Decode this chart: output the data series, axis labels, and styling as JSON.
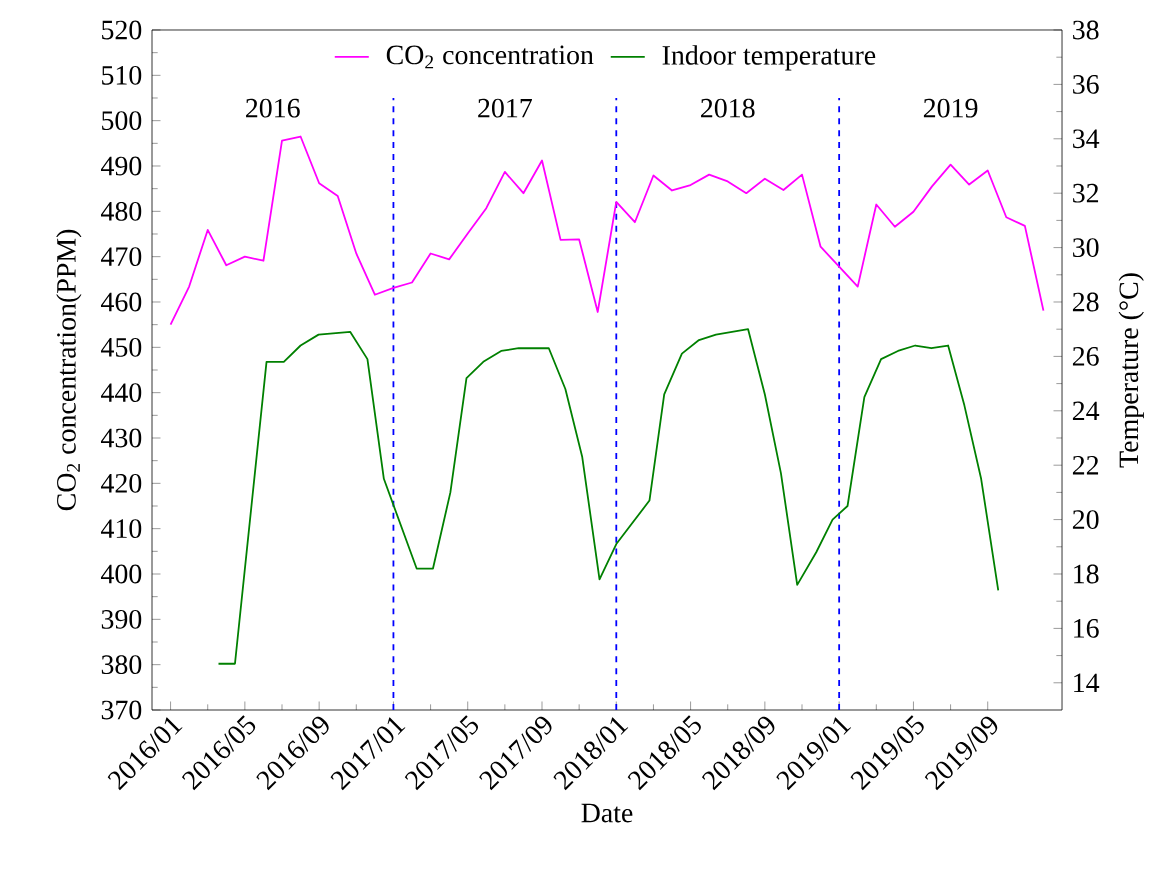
{
  "chart_data": {
    "type": "line",
    "xlabel": "Date",
    "ylabel": "CO$_{2}$ concentration(PPM)",
    "y2label": "Temperature (°C)",
    "xlim": [
      "2015-12",
      "2020-01"
    ],
    "ylim": [
      370,
      520
    ],
    "y2lim": [
      13,
      38
    ],
    "xticks": [
      {
        "value": "2016-01",
        "label": "2016/01"
      },
      {
        "value": "2016-05",
        "label": "2016/05"
      },
      {
        "value": "2016-09",
        "label": "2016/09"
      },
      {
        "value": "2017-01",
        "label": "2017/01"
      },
      {
        "value": "2017-05",
        "label": "2017/05"
      },
      {
        "value": "2017-09",
        "label": "2017/09"
      },
      {
        "value": "2018-01",
        "label": "2018/01"
      },
      {
        "value": "2018-05",
        "label": "2018/05"
      },
      {
        "value": "2018-09",
        "label": "2018/09"
      },
      {
        "value": "2019-01",
        "label": "2019/01"
      },
      {
        "value": "2019-05",
        "label": "2019/05"
      },
      {
        "value": "2019-09",
        "label": "2019/09"
      }
    ],
    "yticks": [
      370,
      380,
      390,
      400,
      410,
      420,
      430,
      440,
      450,
      460,
      470,
      480,
      490,
      500,
      510,
      520
    ],
    "y2ticks": [
      14,
      16,
      18,
      20,
      22,
      24,
      26,
      28,
      30,
      32,
      34,
      36,
      38
    ],
    "legend": "top",
    "marker": "none",
    "line_style": "solid",
    "series": [
      {
        "name": "CO$_{2}$ concentration",
        "color": "#ff00ff",
        "x": [
          "2016-01",
          "2016-02",
          "2016-03",
          "2016-04",
          "2016-05",
          "2016-06",
          "2016-07",
          "2016-08",
          "2016-09",
          "2016-10",
          "2016-11",
          "2016-12",
          "2017-01",
          "2017-02",
          "2017-03",
          "2017-04",
          "2017-05",
          "2017-06",
          "2017-07",
          "2017-08",
          "2017-09",
          "2017-10",
          "2017-11",
          "2017-12",
          "2018-01",
          "2018-02",
          "2018-03",
          "2018-04",
          "2018-05",
          "2018-06",
          "2018-07",
          "2018-08",
          "2018-09",
          "2018-10",
          "2018-11",
          "2018-12",
          "2019-01",
          "2019-02",
          "2019-03",
          "2019-04",
          "2019-05",
          "2019-06",
          "2019-07",
          "2019-08",
          "2019-09",
          "2019-10",
          "2019-11",
          "2019-12"
        ],
        "values": [
          455,
          463.4,
          475.9,
          468.1,
          470,
          469.1,
          495.6,
          496.5,
          486.2,
          483.4,
          470.7,
          461.6,
          463.1,
          464.3,
          470.7,
          469.4,
          475.1,
          480.7,
          488.7,
          484,
          491.2,
          473.7,
          473.8,
          457.8,
          482.1,
          477.6,
          487.9,
          484.6,
          485.8,
          488.1,
          486.6,
          484,
          487.2,
          484.7,
          488.1,
          472.2,
          467.8,
          463.4,
          481.5,
          476.6,
          479.9,
          485.5,
          490.3,
          485.9,
          489,
          478.7,
          476.8,
          458.1
        ]
      },
      {
        "name": "Indoor temperature",
        "color": "#008000",
        "axis": "y2",
        "x": [
          "2016-03-19",
          "2016-04-15",
          "2016-06-06",
          "2016-07-04",
          "2016-08-01",
          "2016-08-31",
          "2016-10-22",
          "2016-11-19",
          "2016-12-16",
          "2017-02-08",
          "2017-03-05",
          "2017-04-03",
          "2017-04-29",
          "2017-05-27",
          "2017-06-25",
          "2017-07-24",
          "2017-09-12",
          "2017-10-09",
          "2017-11-06",
          "2017-12-04",
          "2018-01-01",
          "2018-02-23",
          "2018-03-19",
          "2018-04-17",
          "2018-05-15",
          "2018-06-12",
          "2018-08-04",
          "2018-09-01",
          "2018-09-27",
          "2018-10-24",
          "2018-11-24",
          "2018-12-21",
          "2019-01-15",
          "2019-02-11",
          "2019-03-09",
          "2019-04-06",
          "2019-05-04",
          "2019-05-31",
          "2019-06-27",
          "2019-07-24",
          "2019-08-21",
          "2019-09-18"
        ],
        "values": [
          14.7,
          14.7,
          25.8,
          25.8,
          26.4,
          26.8,
          26.9,
          25.9,
          21.5,
          18.2,
          18.2,
          21,
          25.2,
          25.8,
          26.2,
          26.3,
          26.3,
          24.8,
          22.3,
          17.8,
          19.1,
          20.7,
          24.6,
          26.1,
          26.6,
          26.8,
          27,
          24.6,
          21.7,
          17.6,
          18.8,
          20,
          20.5,
          24.5,
          25.9,
          26.2,
          26.4,
          26.3,
          26.4,
          24.2,
          21.5,
          17.4
        ]
      }
    ],
    "ref_lines": [
      {
        "axis": "x",
        "value": "2017-01",
        "color": "#0000ff",
        "line_style": "dashed"
      },
      {
        "axis": "x",
        "value": "2018-01",
        "color": "#0000ff",
        "line_style": "dashed"
      },
      {
        "axis": "x",
        "value": "2019-01",
        "color": "#0000ff",
        "line_style": "dashed"
      }
    ],
    "annotations": [
      "2016",
      "2017",
      "2018",
      "2019"
    ]
  }
}
